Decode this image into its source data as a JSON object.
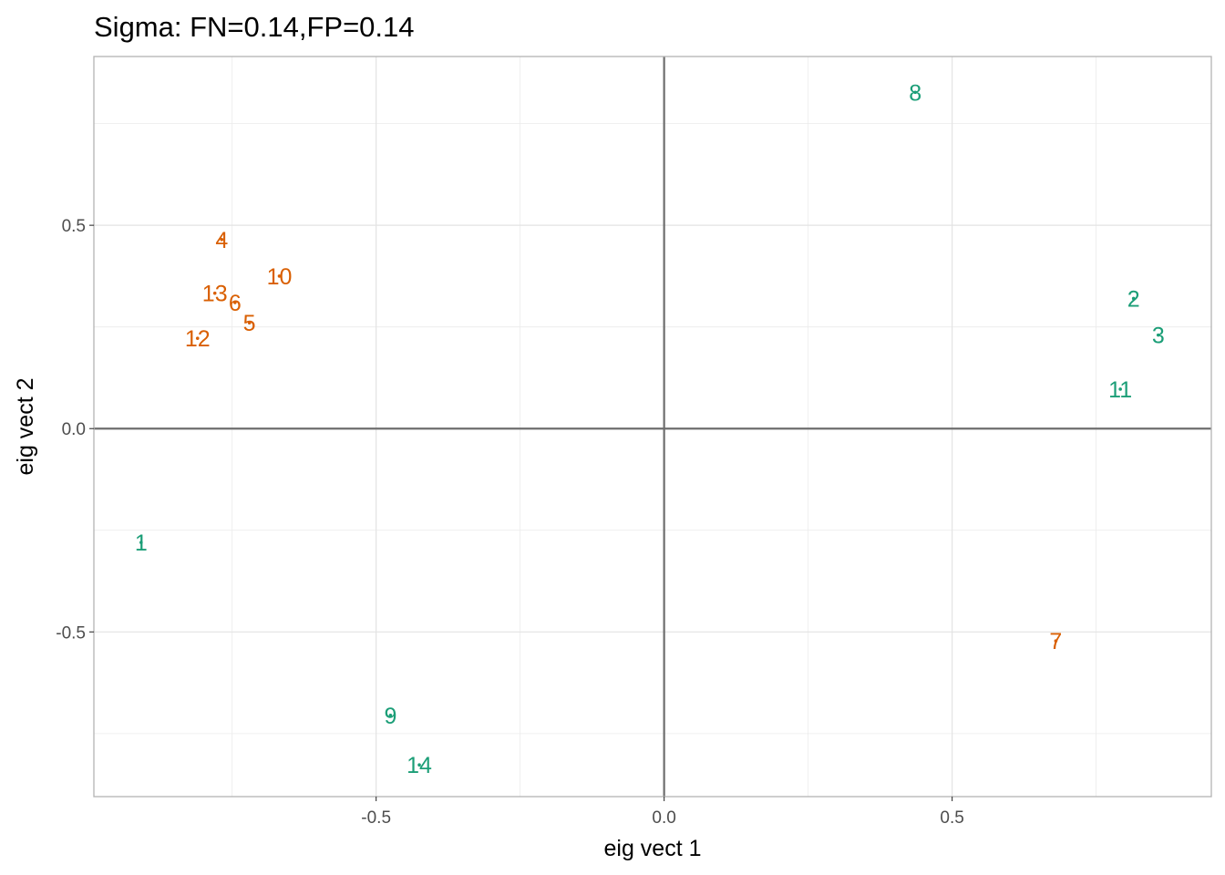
{
  "chart_data": {
    "type": "scatter",
    "title": "Sigma: FN=0.14,FP=0.14",
    "xlabel": "eig vect 1",
    "ylabel": "eig vect 2",
    "xlim": [
      -0.99,
      0.95
    ],
    "ylim": [
      -0.905,
      0.915
    ],
    "x_ticks": [
      -0.5,
      0.0,
      0.5
    ],
    "x_tick_labels": [
      "-0.5",
      "0.0",
      "0.5"
    ],
    "y_ticks": [
      -0.5,
      0.0,
      0.5
    ],
    "y_tick_labels": [
      "-0.5",
      "0.0",
      "0.5"
    ],
    "x_minor_ticks": [
      -0.75,
      -0.25,
      0.25,
      0.75
    ],
    "y_minor_ticks": [
      -0.75,
      -0.25,
      0.25,
      0.75
    ],
    "grid": true,
    "zero_lines": true,
    "colors": {
      "orange": "#D95F02",
      "green": "#1B9E77",
      "grid": "#ebebeb",
      "zero_line": "#6e6e6e",
      "panel_border": "#b3b3b3"
    },
    "series": [
      {
        "name": "orange",
        "color": "#D95F02",
        "points": [
          {
            "label": "4",
            "x": -0.768,
            "y": 0.465
          },
          {
            "label": "10",
            "x": -0.668,
            "y": 0.375
          },
          {
            "label": "13",
            "x": -0.78,
            "y": 0.333
          },
          {
            "label": "6",
            "x": -0.745,
            "y": 0.31
          },
          {
            "label": "5",
            "x": -0.72,
            "y": 0.26
          },
          {
            "label": "12",
            "x": -0.81,
            "y": 0.222
          },
          {
            "label": "7",
            "x": 0.68,
            "y": -0.522
          }
        ]
      },
      {
        "name": "green",
        "color": "#1B9E77",
        "points": [
          {
            "label": "8",
            "x": 0.436,
            "y": 0.827
          },
          {
            "label": "2",
            "x": 0.815,
            "y": 0.32
          },
          {
            "label": "3",
            "x": 0.858,
            "y": 0.23
          },
          {
            "label": "11",
            "x": 0.792,
            "y": 0.097
          },
          {
            "label": "1",
            "x": -0.908,
            "y": -0.28
          },
          {
            "label": "9",
            "x": -0.475,
            "y": -0.705
          },
          {
            "label": "14",
            "x": -0.425,
            "y": -0.827
          }
        ]
      }
    ]
  }
}
